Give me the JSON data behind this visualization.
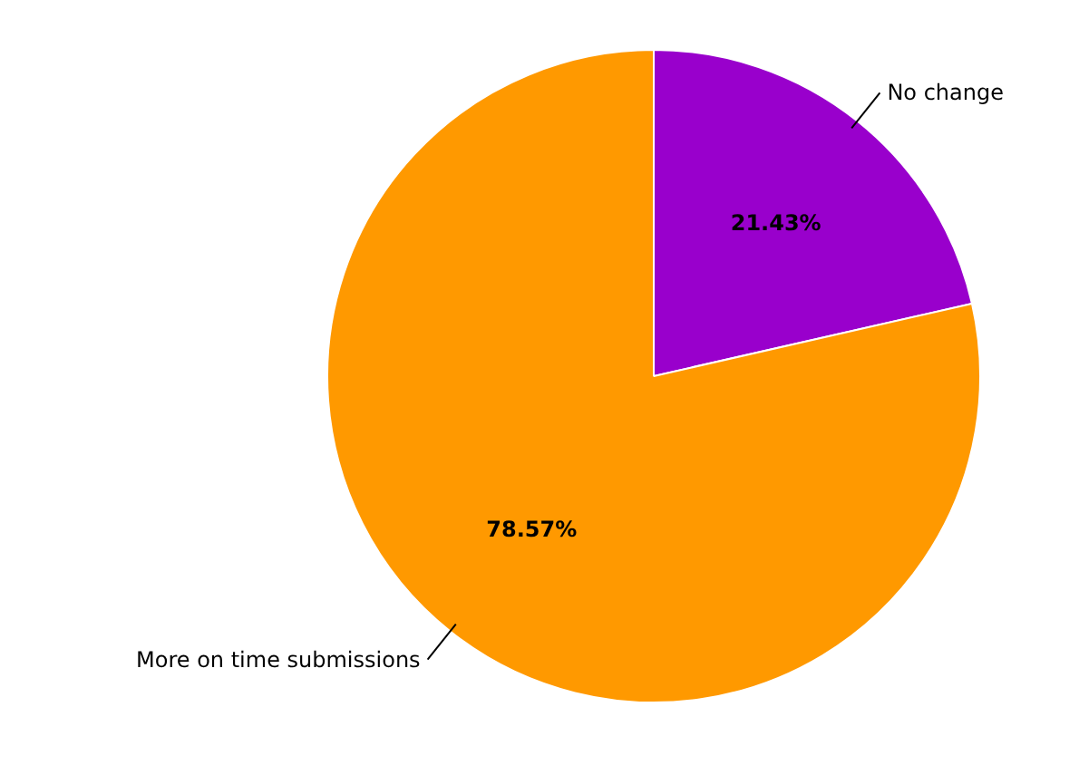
{
  "chart_data": {
    "type": "pie",
    "categories": [
      "No change",
      "More on time submissions"
    ],
    "values": [
      21.43,
      78.57
    ],
    "colors": [
      "#9900cc",
      "#ff9900"
    ],
    "value_labels": [
      "21.43%",
      "78.57%"
    ]
  }
}
